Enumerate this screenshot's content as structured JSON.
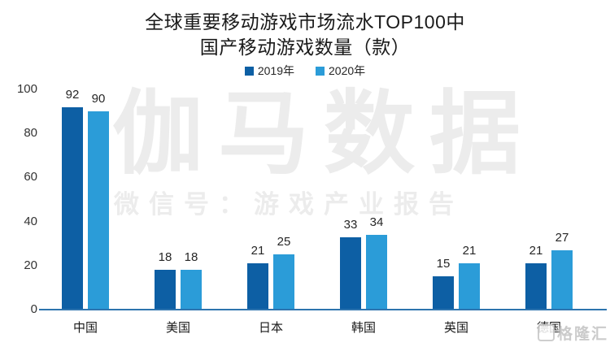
{
  "title": {
    "line1": "全球重要移动游戏市场流水TOP100中",
    "line2": "国产移动游戏数量（款）"
  },
  "watermark": {
    "main": "伽马数据",
    "sub": "微信号：游戏产业报告",
    "corner": "格隆汇"
  },
  "colors": {
    "series_2019": "#0d5fa4",
    "series_2020": "#2b9cd8",
    "axis_line": "#2d74ae",
    "title_text": "#1a1a1a",
    "watermark_gray": "#ececec",
    "background": "#ffffff"
  },
  "chart_data": {
    "type": "bar",
    "title": "全球重要移动游戏市场流水TOP100中国产移动游戏数量（款）",
    "categories": [
      "中国",
      "美国",
      "日本",
      "韩国",
      "英国",
      "德国"
    ],
    "series": [
      {
        "name": "2019年",
        "color": "#0d5fa4",
        "values": [
          92,
          18,
          21,
          33,
          15,
          21
        ]
      },
      {
        "name": "2020年",
        "color": "#2b9cd8",
        "values": [
          90,
          18,
          25,
          34,
          21,
          27
        ]
      }
    ],
    "xlabel": "",
    "ylabel": "",
    "ylim": [
      0,
      100
    ],
    "yticks": [
      0,
      20,
      40,
      60,
      80,
      100
    ],
    "grid": false,
    "legend_position": "top-center",
    "data_labels": true
  }
}
